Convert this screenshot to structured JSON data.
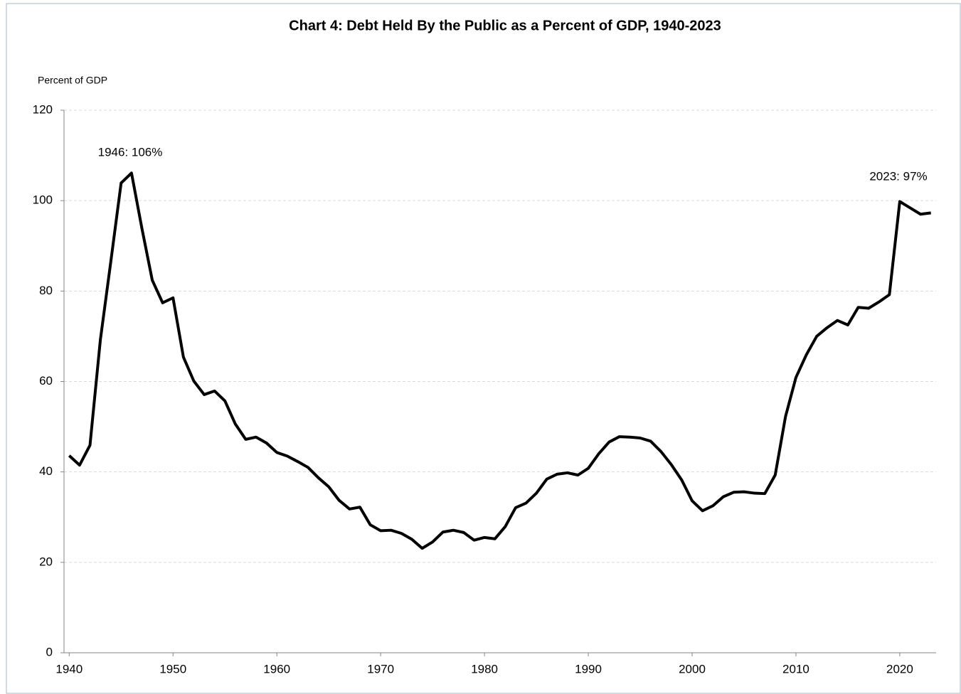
{
  "chart_data": {
    "type": "line",
    "title": "Chart 4:  Debt Held By the Public as a Percent of GDP, 1940-2023",
    "y_label": "Percent of GDP",
    "annotations": [
      "1946: 106%",
      "2023: 97%"
    ],
    "x": [
      1940,
      1941,
      1942,
      1943,
      1944,
      1945,
      1946,
      1947,
      1948,
      1949,
      1950,
      1951,
      1952,
      1953,
      1954,
      1955,
      1956,
      1957,
      1958,
      1959,
      1960,
      1961,
      1962,
      1963,
      1964,
      1965,
      1966,
      1967,
      1968,
      1969,
      1970,
      1971,
      1972,
      1973,
      1974,
      1975,
      1976,
      1977,
      1978,
      1979,
      1980,
      1981,
      1982,
      1983,
      1984,
      1985,
      1986,
      1987,
      1988,
      1989,
      1990,
      1991,
      1992,
      1993,
      1994,
      1995,
      1996,
      1997,
      1998,
      1999,
      2000,
      2001,
      2002,
      2003,
      2004,
      2005,
      2006,
      2007,
      2008,
      2009,
      2010,
      2011,
      2012,
      2013,
      2014,
      2015,
      2016,
      2017,
      2018,
      2019,
      2020,
      2021,
      2022,
      2023
    ],
    "series": [
      {
        "name": "Debt held by the public",
        "color": "#000000",
        "values": [
          43.6,
          41.5,
          45.9,
          69.2,
          86.4,
          103.9,
          106.1,
          93.9,
          82.4,
          77.4,
          78.5,
          65.4,
          60.1,
          57.1,
          57.9,
          55.7,
          50.6,
          47.2,
          47.7,
          46.4,
          44.3,
          43.5,
          42.3,
          41.0,
          38.7,
          36.7,
          33.7,
          31.8,
          32.2,
          28.3,
          27.0,
          27.1,
          26.4,
          25.1,
          23.1,
          24.5,
          26.7,
          27.1,
          26.6,
          24.9,
          25.5,
          25.2,
          27.9,
          32.1,
          33.1,
          35.3,
          38.4,
          39.5,
          39.8,
          39.3,
          40.8,
          44.0,
          46.6,
          47.8,
          47.7,
          47.5,
          46.8,
          44.5,
          41.6,
          38.2,
          33.6,
          31.4,
          32.5,
          34.5,
          35.5,
          35.6,
          35.3,
          35.2,
          39.3,
          52.3,
          60.9,
          65.9,
          70.0,
          71.9,
          73.5,
          72.5,
          76.4,
          76.2,
          77.6,
          79.2,
          99.8,
          98.4,
          97.0,
          97.3
        ]
      }
    ],
    "xlim": [
      1939.5,
      2023.5
    ],
    "xticks": [
      1940,
      1950,
      1960,
      1970,
      1980,
      1990,
      2000,
      2010,
      2020
    ],
    "ylim": [
      0,
      120
    ],
    "yticks": [
      0,
      20,
      40,
      60,
      80,
      100,
      120
    ],
    "grid": true
  }
}
